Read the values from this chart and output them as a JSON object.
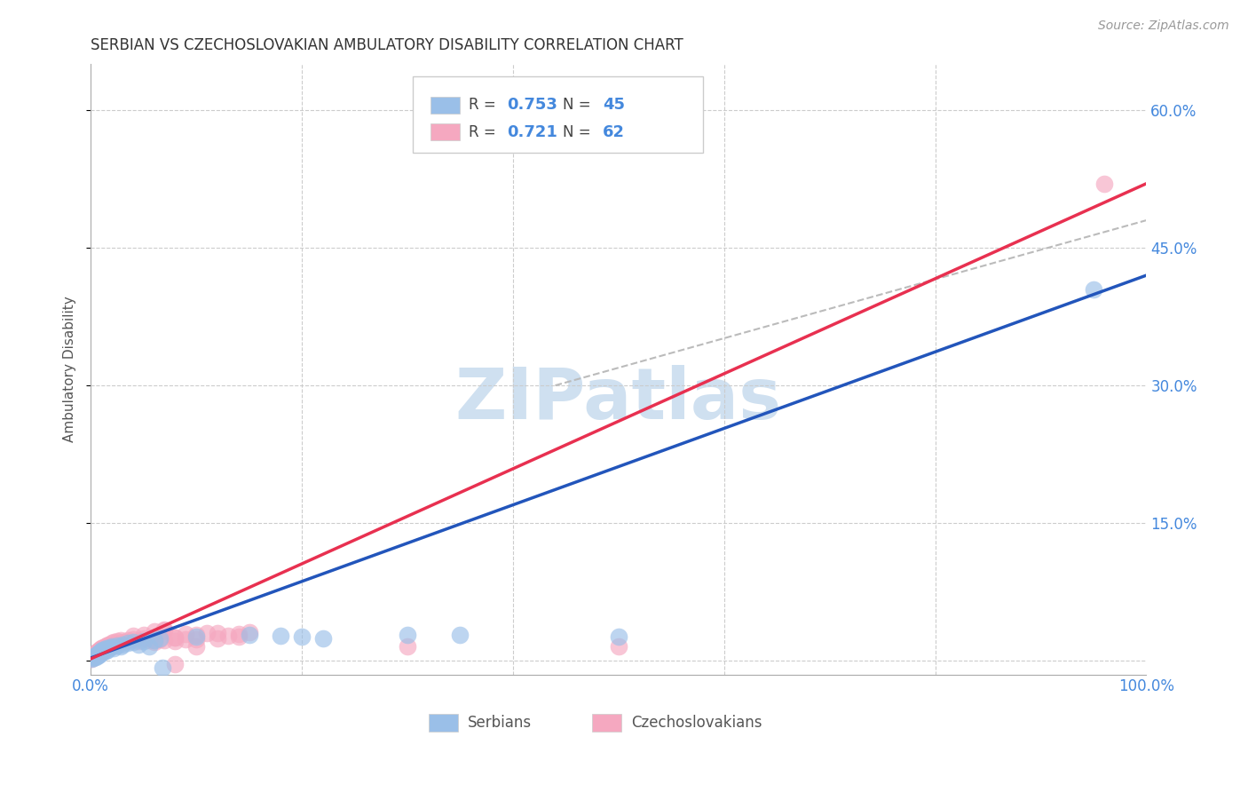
{
  "title": "SERBIAN VS CZECHOSLOVAKIAN AMBULATORY DISABILITY CORRELATION CHART",
  "source": "Source: ZipAtlas.com",
  "ylabel": "Ambulatory Disability",
  "xlim": [
    0,
    1.0
  ],
  "ylim": [
    -0.015,
    0.65
  ],
  "xticks": [
    0.0,
    0.2,
    0.4,
    0.6,
    0.8,
    1.0
  ],
  "xticklabels": [
    "0.0%",
    "",
    "",
    "",
    "",
    "100.0%"
  ],
  "yticks": [
    0.0,
    0.15,
    0.3,
    0.45,
    0.6
  ],
  "yticklabels": [
    "",
    "15.0%",
    "30.0%",
    "45.0%",
    "60.0%"
  ],
  "serbian_color": "#9abfe8",
  "czechoslovakian_color": "#f5a8c0",
  "serbian_line_color": "#2255bb",
  "czechoslovakian_line_color": "#e83050",
  "dashed_line_color": "#bbbbbb",
  "watermark_color": "#cfe0f0",
  "legend_serbian_R": "0.753",
  "legend_serbian_N": "45",
  "legend_czechoslovakian_R": "0.721",
  "legend_czechoslovakian_N": "62",
  "background_color": "#ffffff",
  "grid_color": "#cccccc",
  "title_color": "#333333",
  "axis_label_color": "#555555",
  "tick_label_color": "#4488dd",
  "serbian_scatter": [
    [
      0.001,
      0.002
    ],
    [
      0.002,
      0.003
    ],
    [
      0.003,
      0.004
    ],
    [
      0.004,
      0.005
    ],
    [
      0.005,
      0.006
    ],
    [
      0.005,
      0.004
    ],
    [
      0.006,
      0.007
    ],
    [
      0.006,
      0.005
    ],
    [
      0.007,
      0.008
    ],
    [
      0.007,
      0.006
    ],
    [
      0.008,
      0.009
    ],
    [
      0.008,
      0.007
    ],
    [
      0.009,
      0.01
    ],
    [
      0.009,
      0.008
    ],
    [
      0.01,
      0.011
    ],
    [
      0.01,
      0.009
    ],
    [
      0.011,
      0.012
    ],
    [
      0.012,
      0.01
    ],
    [
      0.013,
      0.013
    ],
    [
      0.014,
      0.011
    ],
    [
      0.015,
      0.014
    ],
    [
      0.016,
      0.012
    ],
    [
      0.018,
      0.015
    ],
    [
      0.02,
      0.016
    ],
    [
      0.022,
      0.014
    ],
    [
      0.025,
      0.017
    ],
    [
      0.028,
      0.016
    ],
    [
      0.03,
      0.018
    ],
    [
      0.035,
      0.019
    ],
    [
      0.04,
      0.02
    ],
    [
      0.045,
      0.018
    ],
    [
      0.05,
      0.021
    ],
    [
      0.055,
      0.016
    ],
    [
      0.06,
      0.022
    ],
    [
      0.065,
      0.024
    ],
    [
      0.1,
      0.026
    ],
    [
      0.15,
      0.028
    ],
    [
      0.18,
      0.027
    ],
    [
      0.2,
      0.026
    ],
    [
      0.22,
      0.024
    ],
    [
      0.3,
      0.028
    ],
    [
      0.35,
      0.028
    ],
    [
      0.5,
      0.026
    ],
    [
      0.068,
      -0.008
    ],
    [
      0.95,
      0.405
    ]
  ],
  "czechoslovakian_scatter": [
    [
      0.001,
      0.002
    ],
    [
      0.002,
      0.004
    ],
    [
      0.003,
      0.005
    ],
    [
      0.004,
      0.006
    ],
    [
      0.005,
      0.007
    ],
    [
      0.005,
      0.009
    ],
    [
      0.006,
      0.008
    ],
    [
      0.006,
      0.01
    ],
    [
      0.007,
      0.009
    ],
    [
      0.007,
      0.011
    ],
    [
      0.008,
      0.01
    ],
    [
      0.008,
      0.012
    ],
    [
      0.009,
      0.011
    ],
    [
      0.009,
      0.013
    ],
    [
      0.01,
      0.012
    ],
    [
      0.01,
      0.014
    ],
    [
      0.011,
      0.013
    ],
    [
      0.012,
      0.015
    ],
    [
      0.013,
      0.014
    ],
    [
      0.014,
      0.016
    ],
    [
      0.015,
      0.017
    ],
    [
      0.016,
      0.015
    ],
    [
      0.017,
      0.018
    ],
    [
      0.018,
      0.016
    ],
    [
      0.02,
      0.019
    ],
    [
      0.022,
      0.02
    ],
    [
      0.025,
      0.021
    ],
    [
      0.028,
      0.022
    ],
    [
      0.03,
      0.02
    ],
    [
      0.035,
      0.022
    ],
    [
      0.04,
      0.023
    ],
    [
      0.045,
      0.021
    ],
    [
      0.05,
      0.024
    ],
    [
      0.055,
      0.022
    ],
    [
      0.06,
      0.02
    ],
    [
      0.065,
      0.023
    ],
    [
      0.07,
      0.022
    ],
    [
      0.08,
      0.025
    ],
    [
      0.1,
      0.023
    ],
    [
      0.12,
      0.024
    ],
    [
      0.14,
      0.026
    ],
    [
      0.06,
      0.032
    ],
    [
      0.07,
      0.033
    ],
    [
      0.07,
      0.034
    ],
    [
      0.04,
      0.027
    ],
    [
      0.05,
      0.028
    ],
    [
      0.08,
      0.025
    ],
    [
      0.09,
      0.023
    ],
    [
      0.06,
      0.022
    ],
    [
      0.08,
      0.021
    ],
    [
      0.1,
      0.028
    ],
    [
      0.12,
      0.03
    ],
    [
      0.14,
      0.029
    ],
    [
      0.15,
      0.031
    ],
    [
      0.11,
      0.03
    ],
    [
      0.09,
      0.029
    ],
    [
      0.13,
      0.027
    ],
    [
      0.1,
      0.016
    ],
    [
      0.08,
      -0.004
    ],
    [
      0.3,
      0.016
    ],
    [
      0.5,
      0.016
    ],
    [
      0.96,
      0.52
    ]
  ],
  "serbian_line": [
    [
      0.0,
      0.003
    ],
    [
      1.0,
      0.42
    ]
  ],
  "czechoslovakian_line": [
    [
      0.0,
      0.002
    ],
    [
      1.0,
      0.52
    ]
  ],
  "dashed_line": [
    [
      0.44,
      0.3
    ],
    [
      1.0,
      0.48
    ]
  ]
}
